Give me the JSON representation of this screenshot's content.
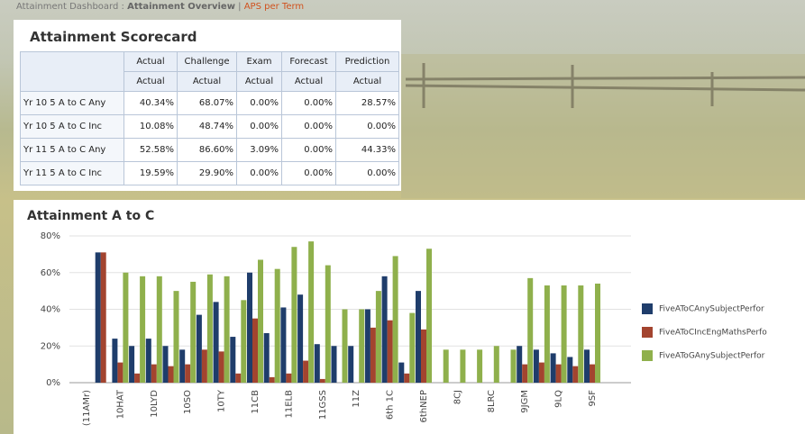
{
  "breadcrumb": {
    "root": "Attainment Dashboard :",
    "current": "Attainment Overview",
    "separator": "|",
    "link": "APS per Term"
  },
  "scorecard": {
    "title": "Attainment Scorecard",
    "columns": [
      "Actual",
      "Challenge",
      "Exam",
      "Forecast",
      "Prediction"
    ],
    "subheader": [
      "Actual",
      "Actual",
      "Actual",
      "Actual",
      "Actual"
    ],
    "rows": [
      [
        "Yr 10 5 A to C Any",
        "40.34%",
        "68.07%",
        "0.00%",
        "0.00%",
        "28.57%"
      ],
      [
        "Yr 10 5 A to C Inc",
        "10.08%",
        "48.74%",
        "0.00%",
        "0.00%",
        "0.00%"
      ],
      [
        "Yr 11 5 A to C Any",
        "52.58%",
        "86.60%",
        "3.09%",
        "0.00%",
        "44.33%"
      ],
      [
        "Yr 11 5 A to C Inc",
        "19.59%",
        "29.90%",
        "0.00%",
        "0.00%",
        "0.00%"
      ]
    ]
  },
  "chart_data": {
    "type": "bar",
    "title": "Attainment A to C",
    "categories": [
      "(11AMr)",
      null,
      "10HAT",
      null,
      "10LYD",
      null,
      "10SO",
      null,
      "10TY",
      null,
      "11CB",
      null,
      "11ELB",
      null,
      "11GSS",
      null,
      "11Z",
      null,
      "6th 1C",
      null,
      "6thNEP",
      null,
      "8CJ",
      null,
      "8LRC",
      null,
      "9JGM",
      null,
      "9LQ",
      null,
      "9SF"
    ],
    "series": [
      {
        "name": "FiveAToCAnySubjectPerfor",
        "color": "#1f3d6b",
        "values": [
          null,
          71,
          24,
          20,
          24,
          20,
          18,
          37,
          44,
          25,
          60,
          27,
          41,
          48,
          21,
          20,
          20,
          40,
          58,
          11,
          50,
          null,
          null,
          null,
          null,
          null,
          20,
          18,
          16,
          14,
          18
        ]
      },
      {
        "name": "FiveAToCIncEngMathsPerfo",
        "color": "#a3442f",
        "values": [
          null,
          71,
          11,
          5,
          10,
          9,
          10,
          18,
          17,
          5,
          35,
          3,
          5,
          12,
          2,
          null,
          null,
          30,
          34,
          5,
          29,
          null,
          null,
          null,
          null,
          null,
          10,
          11,
          10,
          9,
          10
        ]
      },
      {
        "name": "FiveAToGAnySubjectPerfor",
        "color": "#8fb04c",
        "values": [
          null,
          null,
          60,
          58,
          58,
          50,
          55,
          59,
          58,
          45,
          67,
          62,
          74,
          77,
          64,
          40,
          40,
          50,
          69,
          38,
          73,
          18,
          18,
          18,
          20,
          18,
          57,
          53,
          53,
          53,
          54
        ]
      }
    ],
    "ylim": [
      0,
      80
    ],
    "yticks": [
      {
        "value": 0,
        "label": "0%"
      },
      {
        "value": 20,
        "label": "20%"
      },
      {
        "value": 40,
        "label": "40%"
      },
      {
        "value": 60,
        "label": "60%"
      },
      {
        "value": 80,
        "label": "80%"
      }
    ],
    "grid": true
  }
}
